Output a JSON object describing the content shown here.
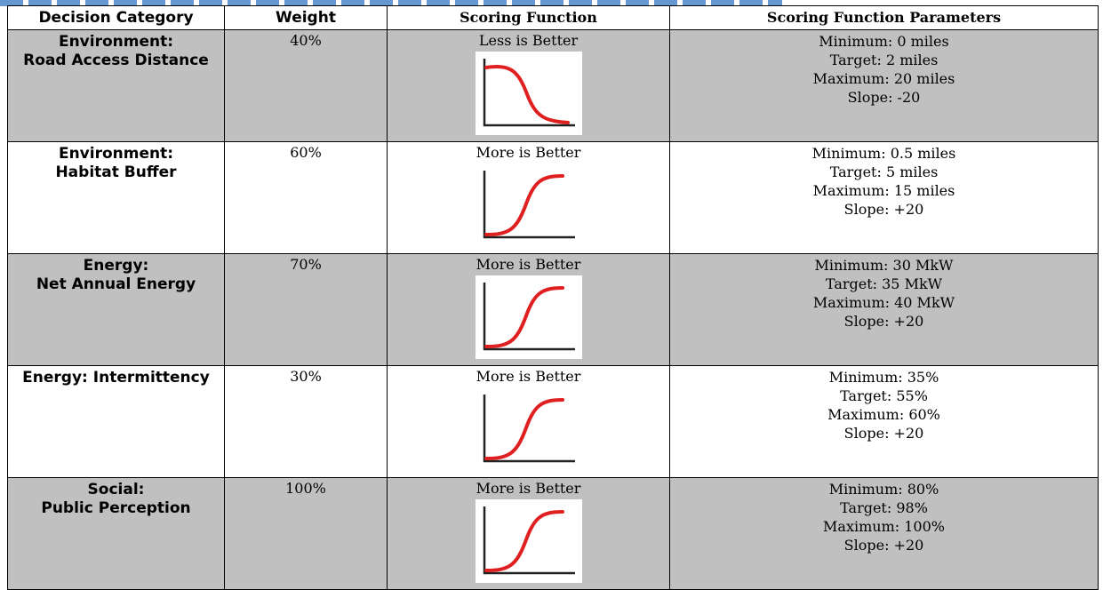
{
  "table": {
    "headers": [
      "Decision Category",
      "Weight",
      "Scoring Function",
      "Scoring Function Parameters"
    ],
    "rows": [
      {
        "category": [
          "Environment:",
          "Road Access Distance"
        ],
        "weight": "40%",
        "function": "Less is Better",
        "curve_icon": "decreasing-s-curve-icon",
        "params": [
          "Minimum: 0 miles",
          "Target: 2 miles",
          "Maximum: 20 miles",
          "Slope: -20"
        ],
        "shade": "gray"
      },
      {
        "category": [
          "Environment:",
          "Habitat Buffer"
        ],
        "weight": "60%",
        "function": "More is Better",
        "curve_icon": "increasing-s-curve-icon",
        "params": [
          "Minimum: 0.5 miles",
          "Target: 5 miles",
          "Maximum: 15 miles",
          "Slope: +20"
        ],
        "shade": "white"
      },
      {
        "category": [
          "Energy:",
          "Net Annual Energy"
        ],
        "weight": "70%",
        "function": "More is Better",
        "curve_icon": "increasing-s-curve-icon",
        "params": [
          "Minimum: 30 MkW",
          "Target: 35 MkW",
          "Maximum: 40 MkW",
          "Slope: +20"
        ],
        "shade": "gray"
      },
      {
        "category": [
          "Energy: Intermittency"
        ],
        "weight": "30%",
        "function": "More is Better",
        "curve_icon": "increasing-s-curve-icon",
        "params": [
          "Minimum: 35%",
          "Target: 55%",
          "Maximum: 60%",
          "Slope: +20"
        ],
        "shade": "white"
      },
      {
        "category": [
          "Social:",
          "Public Perception"
        ],
        "weight": "100%",
        "function": "More is Better",
        "curve_icon": "increasing-s-curve-icon",
        "params": [
          "Minimum: 80%",
          "Target: 98%",
          "Maximum: 100%",
          "Slope: +20"
        ],
        "shade": "gray"
      }
    ]
  },
  "colors": {
    "gray_row": "#c0c0c0",
    "curve": "#e02020",
    "axis": "#222222",
    "caption": "#4a86c8"
  }
}
